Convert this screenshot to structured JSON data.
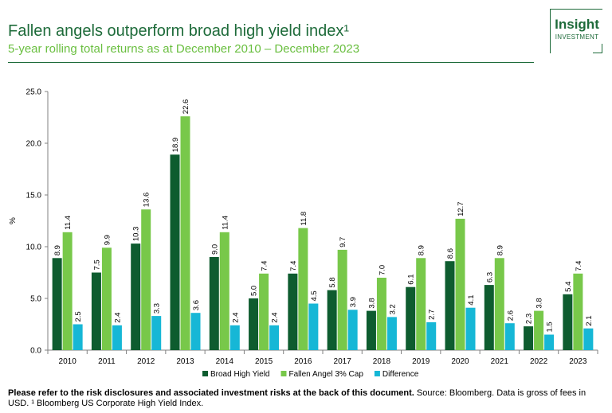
{
  "header": {
    "title": "Fallen angels outperform broad high yield index¹",
    "subtitle": "5-year rolling total returns as at December 2010 – December 2023"
  },
  "logo": {
    "line1": "Insight",
    "line2": "INVESTMENT"
  },
  "footer": {
    "bold": "Please refer to the risk disclosures and associated investment risks at the back of this document.",
    "normal": " Source: Bloomberg. Data is gross of fees in USD. ¹ Bloomberg US Corporate High Yield Index."
  },
  "chart_data": {
    "type": "bar",
    "title": "",
    "xlabel": "",
    "ylabel": "%",
    "ylim": [
      0,
      25
    ],
    "yticks": [
      "0.0",
      "5.0",
      "10.0",
      "15.0",
      "20.0",
      "25.0"
    ],
    "grid": false,
    "legend_position": "bottom",
    "categories": [
      "2010",
      "2011",
      "2012",
      "2013",
      "2014",
      "2015",
      "2016",
      "2017",
      "2018",
      "2019",
      "2020",
      "2021",
      "2022",
      "2023"
    ],
    "series": [
      {
        "name": "Broad High Yield",
        "color": "#0e5c2f",
        "values": [
          8.9,
          7.5,
          10.3,
          18.9,
          9.0,
          5.0,
          7.4,
          5.8,
          3.8,
          6.1,
          8.6,
          6.3,
          2.3,
          5.4
        ]
      },
      {
        "name": "Fallen Angel 3% Cap",
        "color": "#78c84a",
        "values": [
          11.4,
          9.9,
          13.6,
          22.6,
          11.4,
          7.4,
          11.8,
          9.7,
          7.0,
          8.9,
          12.7,
          8.9,
          3.8,
          7.4
        ]
      },
      {
        "name": "Difference",
        "color": "#16b7d6",
        "values": [
          2.5,
          2.4,
          3.3,
          3.6,
          2.4,
          2.4,
          4.5,
          3.9,
          3.2,
          2.7,
          4.1,
          2.6,
          1.5,
          2.1
        ]
      }
    ]
  }
}
